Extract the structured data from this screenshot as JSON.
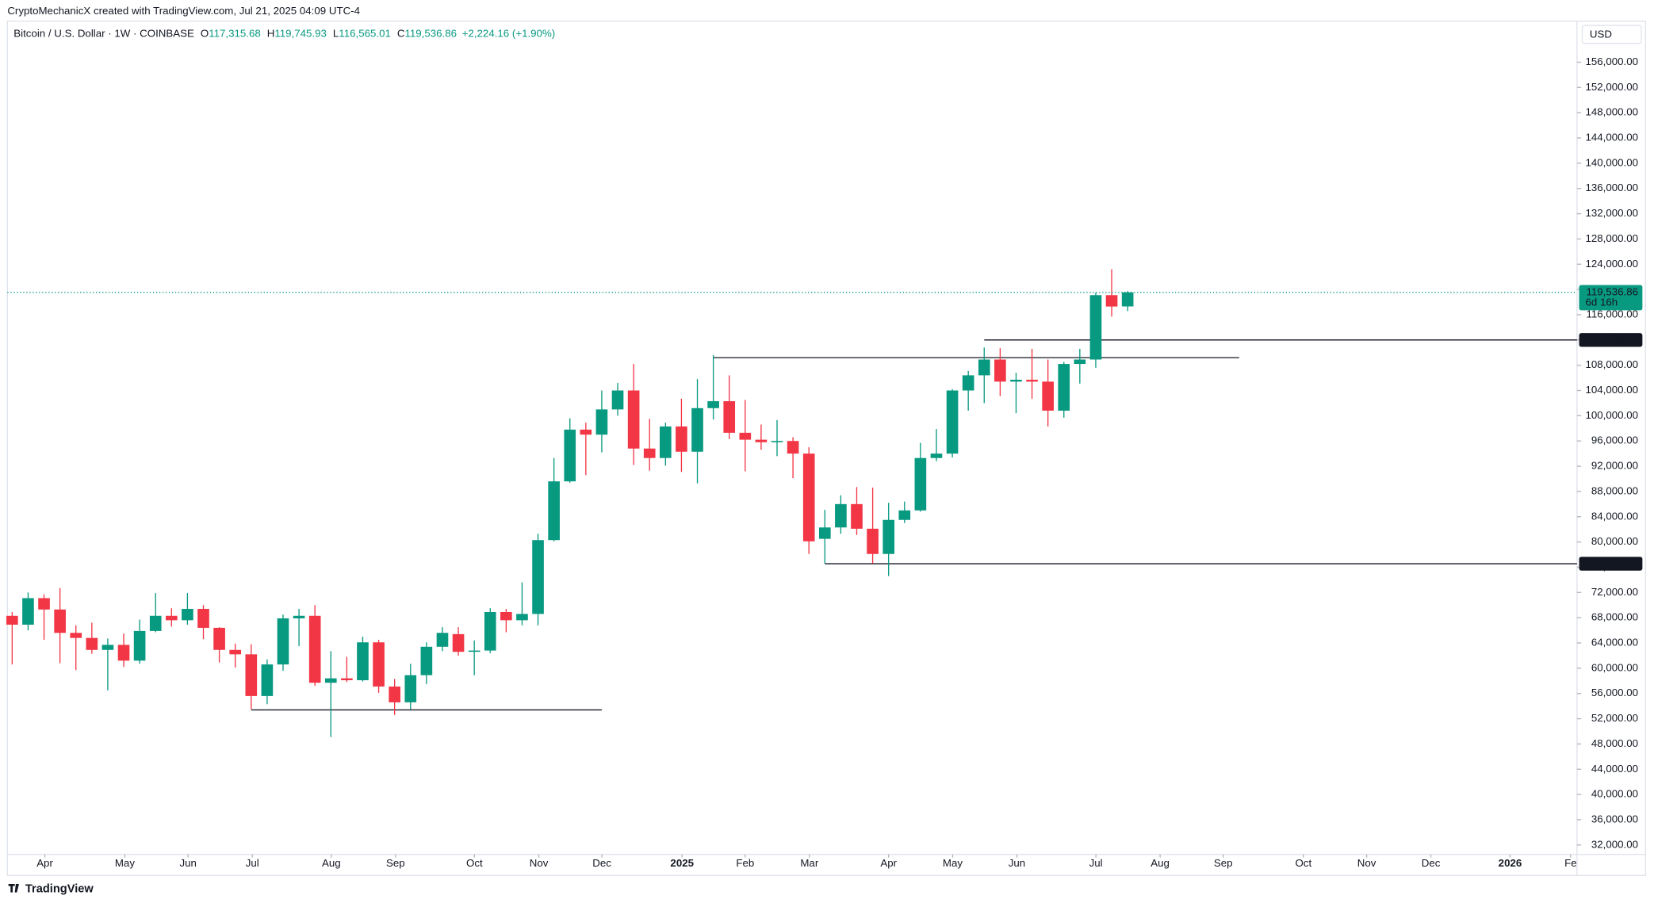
{
  "header": {
    "credit": "CryptoMechanicX created with TradingView.com, Jul 21, 2025 04:09 UTC-4",
    "currency": "USD",
    "logo": "TradingView"
  },
  "chart_data": {
    "type": "candlestick",
    "title": "Bitcoin / U.S. Dollar · 1W · COINBASE",
    "ohlc_legend": [
      {
        "key": "O",
        "value": "117,315.68"
      },
      {
        "key": "H",
        "value": "119,745.93"
      },
      {
        "key": "L",
        "value": "116,565.01"
      },
      {
        "key": "C",
        "value": "119,536.86"
      }
    ],
    "change": "+2,224.16 (+1.90%)",
    "up_color": "#089981",
    "down_color": "#f23645",
    "open": [
      68300,
      66900,
      71100,
      69300,
      65600,
      64800,
      62900,
      63700,
      61200,
      65900,
      68300,
      67600,
      69400,
      66400,
      62900,
      62200,
      55600,
      60600,
      67900,
      68300,
      57700,
      58400,
      58100,
      64100,
      57100,
      54600,
      58900,
      63400,
      65400,
      62600,
      62800,
      68900,
      67600,
      68600,
      80300,
      89600,
      97800,
      97000,
      101000,
      104000,
      94800,
      93300,
      98300,
      94300,
      101200,
      102300,
      97300,
      96200,
      95800,
      96000,
      94000,
      80500,
      82300,
      86000,
      82100,
      78100,
      83500,
      85000,
      93300,
      94000,
      104000,
      106400,
      108900,
      105400,
      105700,
      105400,
      100800,
      108200,
      108900,
      119100,
      117315.68
    ],
    "high": [
      68900,
      72000,
      71700,
      72700,
      66800,
      67200,
      64700,
      65500,
      67700,
      71900,
      69500,
      71900,
      70000,
      66500,
      63900,
      63800,
      61400,
      68500,
      69400,
      70000,
      62700,
      61800,
      65000,
      64500,
      58300,
      60700,
      64100,
      66500,
      66500,
      64400,
      69500,
      69400,
      73600,
      81300,
      93300,
      99600,
      98900,
      104000,
      105200,
      108200,
      99500,
      98900,
      102700,
      105800,
      109600,
      106400,
      102500,
      98600,
      99300,
      96600,
      95000,
      85100,
      87400,
      88700,
      88600,
      86200,
      86400,
      95700,
      97900,
      104200,
      107100,
      110800,
      110700,
      106800,
      110600,
      108900,
      108500,
      110600,
      119500,
      123200,
      119745.93
    ],
    "low": [
      60600,
      66000,
      64500,
      60800,
      59700,
      62300,
      56500,
      60200,
      60700,
      65700,
      66600,
      66900,
      64600,
      60900,
      60100,
      53500,
      54300,
      59600,
      63500,
      57200,
      49100,
      57800,
      57900,
      56100,
      52600,
      53500,
      57500,
      62700,
      62000,
      58900,
      62400,
      65700,
      66800,
      66800,
      80100,
      89400,
      90600,
      94200,
      100000,
      92200,
      91300,
      92100,
      91100,
      89300,
      99400,
      96300,
      91200,
      94600,
      93600,
      90100,
      78100,
      76600,
      81300,
      81100,
      76600,
      74600,
      83000,
      84800,
      92800,
      93400,
      100800,
      102000,
      103100,
      100400,
      102700,
      98300,
      99700,
      105100,
      107600,
      115700,
      116565.01
    ],
    "close": [
      66900,
      71100,
      69300,
      65600,
      64800,
      62900,
      63700,
      61200,
      65900,
      68300,
      67600,
      69400,
      66400,
      62900,
      62200,
      55600,
      60600,
      67900,
      68300,
      57700,
      58400,
      58100,
      64100,
      57100,
      54600,
      58900,
      63400,
      65600,
      62600,
      62800,
      68900,
      67600,
      68600,
      80300,
      89600,
      97800,
      97000,
      101000,
      104000,
      94800,
      93300,
      98300,
      94300,
      101200,
      102300,
      97300,
      96200,
      95800,
      96000,
      94000,
      80100,
      82300,
      86000,
      82100,
      78100,
      83500,
      85000,
      93300,
      94000,
      104000,
      106400,
      108900,
      105400,
      105700,
      105400,
      100800,
      108200,
      108900,
      119100,
      117300,
      119536.86
    ],
    "xlim": [
      -0.3,
      98.2
    ],
    "xticks": [
      {
        "value": 2.05,
        "label": "Apr"
      },
      {
        "value": 7.07,
        "label": "May"
      },
      {
        "value": 11.04,
        "label": "Jun"
      },
      {
        "value": 15.07,
        "label": "Jul"
      },
      {
        "value": 20.03,
        "label": "Aug"
      },
      {
        "value": 24.06,
        "label": "Sep"
      },
      {
        "value": 29.01,
        "label": "Oct"
      },
      {
        "value": 33.05,
        "label": "Nov"
      },
      {
        "value": 37.01,
        "label": "Dec"
      },
      {
        "value": 42.04,
        "label": "2025"
      },
      {
        "value": 46.0,
        "label": "Feb"
      },
      {
        "value": 50.03,
        "label": "Mar"
      },
      {
        "value": 55.0,
        "label": "Apr"
      },
      {
        "value": 59.02,
        "label": "May"
      },
      {
        "value": 63.05,
        "label": "Jun"
      },
      {
        "value": 68.01,
        "label": "Jul"
      },
      {
        "value": 72.04,
        "label": "Aug"
      },
      {
        "value": 76.0,
        "label": "Sep"
      },
      {
        "value": 81.03,
        "label": "Oct"
      },
      {
        "value": 85.0,
        "label": "Nov"
      },
      {
        "value": 89.03,
        "label": "Dec"
      },
      {
        "value": 94.0,
        "label": "2026"
      },
      {
        "value": 97.8,
        "label": "Fe"
      }
    ],
    "ylim": [
      27500,
      162500
    ],
    "yticks": [
      {
        "value": 32000,
        "label": "32,000.00"
      },
      {
        "value": 36000,
        "label": "36,000.00"
      },
      {
        "value": 40000,
        "label": "40,000.00"
      },
      {
        "value": 44000,
        "label": "44,000.00"
      },
      {
        "value": 48000,
        "label": "48,000.00"
      },
      {
        "value": 52000,
        "label": "52,000.00"
      },
      {
        "value": 56000,
        "label": "56,000.00"
      },
      {
        "value": 60000,
        "label": "60,000.00"
      },
      {
        "value": 64000,
        "label": "64,000.00"
      },
      {
        "value": 68000,
        "label": "68,000.00"
      },
      {
        "value": 72000,
        "label": "72,000.00"
      },
      {
        "value": 76000,
        "label": "76,000.00"
      },
      {
        "value": 80000,
        "label": "80,000.00"
      },
      {
        "value": 84000,
        "label": "84,000.00"
      },
      {
        "value": 88000,
        "label": "88,000.00"
      },
      {
        "value": 92000,
        "label": "92,000.00"
      },
      {
        "value": 96000,
        "label": "96,000.00"
      },
      {
        "value": 100000,
        "label": "100,000.00"
      },
      {
        "value": 104000,
        "label": "104,000.00"
      },
      {
        "value": 108000,
        "label": "108,000.00"
      },
      {
        "value": 112000,
        "label": "112,000.00"
      },
      {
        "value": 116000,
        "label": "116,000.00"
      },
      {
        "value": 120000,
        "label": "120,000.00"
      },
      {
        "value": 124000,
        "label": "124,000.00"
      },
      {
        "value": 128000,
        "label": "128,000.00"
      },
      {
        "value": 132000,
        "label": "132,000.00"
      },
      {
        "value": 136000,
        "label": "136,000.00"
      },
      {
        "value": 140000,
        "label": "140,000.00"
      },
      {
        "value": 144000,
        "label": "144,000.00"
      },
      {
        "value": 148000,
        "label": "148,000.00"
      },
      {
        "value": 152000,
        "label": "152,000.00"
      },
      {
        "value": 156000,
        "label": "156,000.00"
      }
    ],
    "levels": [
      {
        "value": 53400,
        "from": 15,
        "to": 37
      },
      {
        "value": 109200,
        "from": 44,
        "to": 77
      },
      {
        "value": 112000,
        "from": 61,
        "label": "112,000.00"
      },
      {
        "value": 76555,
        "from": 51,
        "label": "76,555.00"
      }
    ],
    "last_price": {
      "value": 119536.86,
      "label": "119,536.86",
      "countdown": "6d 16h"
    }
  }
}
